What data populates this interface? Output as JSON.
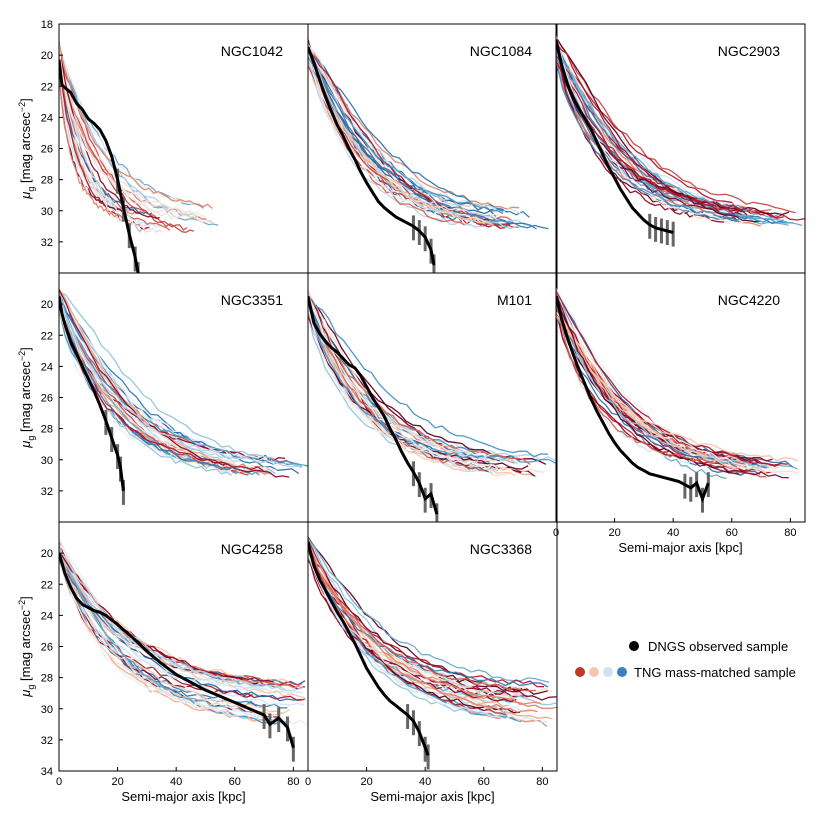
{
  "figure": {
    "x_label": "Semi-major axis [kpc]",
    "y_label": "μ",
    "y_label_sub": "g",
    "y_label_unit": " [mag arcsec",
    "y_label_sup": "−2",
    "y_label_close": "]",
    "legend": {
      "observed": "DNGS observed sample",
      "simulated": "TNG mass-matched sample",
      "observed_color": "#000000",
      "simulated_colors": [
        "#c0392b",
        "#f5c6b0",
        "#cfe1ee",
        "#3a7fbf"
      ]
    },
    "palette": [
      "#67001f",
      "#8b0a26",
      "#b2182b",
      "#c94741",
      "#d6604d",
      "#e58267",
      "#f4a582",
      "#f7c4a8",
      "#fddbc7",
      "#f2e3db",
      "#e8eef3",
      "#d1e5f0",
      "#b3d3e7",
      "#92c5de",
      "#6aa9d0",
      "#4393c3",
      "#2f79b5",
      "#2166ac"
    ]
  },
  "chart_data": [
    {
      "type": "line",
      "title": "NGC1042",
      "xlim": [
        0,
        85
      ],
      "ylim": [
        34,
        18
      ],
      "xticks": [
        0,
        20,
        40,
        60,
        80
      ],
      "yticks": [
        18,
        20,
        22,
        24,
        26,
        28,
        30,
        32
      ],
      "show_xticks": false,
      "show_xlabel": false,
      "show_ylabel": true,
      "observed": {
        "x": [
          0,
          1,
          2,
          4,
          6,
          8,
          10,
          12,
          14,
          16,
          18,
          20,
          22,
          24,
          26,
          27
        ],
        "y": [
          20.3,
          21.9,
          22.1,
          22.4,
          23.1,
          23.5,
          24.1,
          24.4,
          24.8,
          25.5,
          26.5,
          28.0,
          29.8,
          31.5,
          33.0,
          34.0
        ]
      },
      "sim_params": {
        "count": 26,
        "seed": 11,
        "x_end_range": [
          18,
          55
        ],
        "y_end_range": [
          29.5,
          31.5
        ],
        "k_range": [
          0.55,
          1.4
        ],
        "y0_range": [
          19.3,
          21.0
        ]
      }
    },
    {
      "type": "line",
      "title": "NGC1084",
      "xlim": [
        0,
        85
      ],
      "ylim": [
        34,
        18
      ],
      "xticks": [
        0,
        20,
        40,
        60,
        80
      ],
      "yticks": [],
      "show_xticks": false,
      "show_xlabel": false,
      "show_ylabel": false,
      "observed": {
        "x": [
          0,
          2,
          4,
          6,
          8,
          10,
          12,
          14,
          16,
          18,
          20,
          22,
          24,
          26,
          28,
          30,
          32,
          34,
          36,
          38,
          40,
          42,
          43
        ],
        "y": [
          19.5,
          20.5,
          21.6,
          22.7,
          23.6,
          24.5,
          25.2,
          26.0,
          26.7,
          27.5,
          28.2,
          28.8,
          29.4,
          29.8,
          30.1,
          30.4,
          30.6,
          30.8,
          31.0,
          31.3,
          31.7,
          32.5,
          33.5
        ]
      },
      "sim_params": {
        "count": 30,
        "seed": 23,
        "x_end_range": [
          50,
          85
        ],
        "y_end_range": [
          29.8,
          31.2
        ],
        "k_range": [
          0.75,
          1.6
        ],
        "y0_range": [
          19.0,
          20.8
        ]
      }
    },
    {
      "type": "line",
      "title": "NGC2903",
      "xlim": [
        0,
        85
      ],
      "ylim": [
        34,
        18
      ],
      "xticks": [
        0,
        20,
        40,
        60,
        80
      ],
      "yticks": [],
      "show_xticks": false,
      "show_xlabel": false,
      "show_ylabel": false,
      "observed": {
        "x": [
          0,
          2,
          4,
          6,
          8,
          10,
          12,
          14,
          16,
          18,
          20,
          22,
          24,
          26,
          28,
          30,
          32,
          34,
          36,
          38,
          40
        ],
        "y": [
          19.0,
          20.7,
          21.9,
          22.8,
          23.5,
          24.1,
          24.8,
          25.6,
          26.4,
          27.2,
          27.9,
          28.6,
          29.2,
          29.8,
          30.2,
          30.6,
          30.9,
          31.1,
          31.2,
          31.3,
          31.4
        ]
      },
      "sim_params": {
        "count": 32,
        "seed": 37,
        "x_end_range": [
          55,
          85
        ],
        "y_end_range": [
          29.8,
          31.0
        ],
        "k_range": [
          0.7,
          1.5
        ],
        "y0_range": [
          18.8,
          20.5
        ]
      }
    },
    {
      "type": "line",
      "title": "NGC3351",
      "xlim": [
        0,
        85
      ],
      "ylim": [
        34,
        18
      ],
      "xticks": [
        0,
        20,
        40,
        60,
        80
      ],
      "yticks": [
        20,
        22,
        24,
        26,
        28,
        30,
        32
      ],
      "show_xticks": false,
      "show_xlabel": false,
      "show_ylabel": true,
      "observed": {
        "x": [
          0,
          1,
          2,
          4,
          6,
          8,
          10,
          12,
          14,
          16,
          18,
          20,
          21,
          22
        ],
        "y": [
          19.5,
          20.6,
          21.3,
          22.4,
          23.2,
          24.0,
          24.8,
          25.6,
          26.5,
          27.5,
          28.6,
          29.7,
          30.5,
          32.0
        ]
      },
      "sim_params": {
        "count": 32,
        "seed": 53,
        "x_end_range": [
          55,
          85
        ],
        "y_end_range": [
          30.0,
          31.2
        ],
        "k_range": [
          0.75,
          1.5
        ],
        "y0_range": [
          19.0,
          20.5
        ]
      }
    },
    {
      "type": "line",
      "title": "M101",
      "xlim": [
        0,
        85
      ],
      "ylim": [
        34,
        18
      ],
      "xticks": [
        0,
        20,
        40,
        60,
        80
      ],
      "yticks": [],
      "show_xticks": false,
      "show_xlabel": false,
      "show_ylabel": false,
      "observed": {
        "x": [
          0,
          2,
          4,
          6,
          8,
          10,
          12,
          14,
          16,
          18,
          20,
          22,
          24,
          26,
          28,
          30,
          32,
          34,
          36,
          38,
          40,
          42,
          44
        ],
        "y": [
          19.5,
          21.2,
          21.9,
          22.4,
          22.8,
          23.1,
          23.5,
          23.9,
          24.1,
          24.6,
          25.3,
          26.0,
          26.6,
          27.2,
          28.0,
          28.7,
          29.5,
          30.2,
          30.8,
          31.5,
          32.5,
          32.2,
          33.5
        ]
      },
      "sim_params": {
        "count": 34,
        "seed": 71,
        "x_end_range": [
          55,
          85
        ],
        "y_end_range": [
          29.8,
          31.0
        ],
        "k_range": [
          0.7,
          1.45
        ],
        "y0_range": [
          19.0,
          20.8
        ]
      }
    },
    {
      "type": "line",
      "title": "NGC4220",
      "xlim": [
        0,
        85
      ],
      "ylim": [
        34,
        18
      ],
      "xticks": [
        0,
        20,
        40,
        60,
        80
      ],
      "yticks": [],
      "show_xticks": true,
      "show_xlabel": true,
      "show_ylabel": false,
      "observed": {
        "x": [
          0,
          2,
          4,
          6,
          8,
          10,
          12,
          14,
          16,
          18,
          20,
          22,
          24,
          26,
          28,
          30,
          32,
          34,
          36,
          38,
          40,
          42,
          44,
          46,
          48,
          50,
          52
        ],
        "y": [
          19.5,
          21.0,
          22.2,
          23.3,
          24.3,
          25.2,
          26.1,
          26.9,
          27.6,
          28.3,
          28.9,
          29.4,
          29.8,
          30.2,
          30.5,
          30.7,
          30.9,
          31.0,
          31.1,
          31.2,
          31.3,
          31.4,
          31.6,
          31.8,
          31.5,
          32.5,
          31.5
        ]
      },
      "sim_params": {
        "count": 34,
        "seed": 89,
        "x_end_range": [
          55,
          85
        ],
        "y_end_range": [
          29.8,
          31.2
        ],
        "k_range": [
          0.7,
          1.45
        ],
        "y0_range": [
          19.0,
          20.8
        ]
      }
    },
    {
      "type": "line",
      "title": "NGC4258",
      "xlim": [
        0,
        85
      ],
      "ylim": [
        34,
        18
      ],
      "xticks": [
        0,
        20,
        40,
        60,
        80
      ],
      "yticks": [
        20,
        22,
        24,
        26,
        28,
        30,
        32,
        34
      ],
      "show_xticks": true,
      "show_xlabel": true,
      "show_ylabel": true,
      "observed": {
        "x": [
          0,
          2,
          4,
          6,
          8,
          10,
          12,
          14,
          16,
          18,
          20,
          25,
          30,
          35,
          40,
          45,
          50,
          55,
          60,
          65,
          70,
          72,
          75,
          78,
          80
        ],
        "y": [
          20.0,
          21.3,
          22.2,
          22.9,
          23.3,
          23.5,
          23.7,
          23.8,
          24.0,
          24.3,
          24.6,
          25.4,
          26.3,
          27.1,
          27.8,
          28.3,
          28.8,
          29.2,
          29.6,
          30.0,
          30.4,
          31.0,
          30.6,
          31.2,
          32.5
        ]
      },
      "sim_params": {
        "count": 34,
        "seed": 97,
        "x_end_range": [
          65,
          85
        ],
        "y_end_range": [
          28.2,
          31.0
        ],
        "k_range": [
          0.7,
          1.3
        ],
        "y0_range": [
          19.0,
          20.5
        ]
      }
    },
    {
      "type": "line",
      "title": "NGC3368",
      "xlim": [
        0,
        85
      ],
      "ylim": [
        34,
        18
      ],
      "xticks": [
        0,
        20,
        40,
        60,
        80
      ],
      "yticks": [],
      "show_xticks": true,
      "show_xlabel": true,
      "show_ylabel": false,
      "observed": {
        "x": [
          0,
          2,
          4,
          6,
          8,
          10,
          12,
          14,
          16,
          18,
          20,
          22,
          24,
          26,
          28,
          30,
          32,
          34,
          36,
          38,
          40,
          41
        ],
        "y": [
          19.3,
          20.8,
          21.7,
          22.4,
          23.1,
          23.8,
          24.4,
          25.1,
          25.8,
          26.6,
          27.4,
          28.0,
          28.6,
          29.1,
          29.5,
          29.8,
          30.1,
          30.4,
          30.8,
          31.5,
          32.5,
          33.0
        ]
      },
      "sim_params": {
        "count": 34,
        "seed": 113,
        "x_end_range": [
          65,
          85
        ],
        "y_end_range": [
          28.2,
          31.0
        ],
        "k_range": [
          0.7,
          1.3
        ],
        "y0_range": [
          19.0,
          20.5
        ]
      }
    }
  ]
}
